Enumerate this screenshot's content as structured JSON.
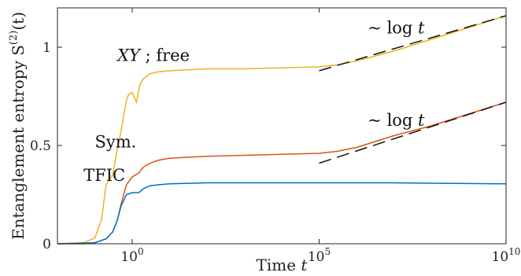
{
  "chart_data": {
    "type": "line",
    "xscale": "log10",
    "xlabel": "Time t",
    "ylabel": "Entanglement entropy S(2)(t)",
    "ylabel_parts": {
      "main": "Entanglement entropy S",
      "sup": "(2)",
      "arg": "(t)"
    },
    "xlim": [
      0.01,
      10000000000
    ],
    "ylim": [
      0,
      1.2
    ],
    "xticks": [
      {
        "value": 1,
        "base": "10",
        "exp": "0"
      },
      {
        "value": 100000,
        "base": "10",
        "exp": "5"
      },
      {
        "value": 10000000000,
        "base": "10",
        "exp": "10"
      }
    ],
    "yticks": [
      {
        "value": 0,
        "label": "0"
      },
      {
        "value": 0.5,
        "label": "0.5"
      },
      {
        "value": 1,
        "label": "1"
      }
    ],
    "grid": false,
    "legend": "none",
    "series": [
      {
        "name": "XY ; free",
        "color": "#edb120",
        "x": [
          0.01,
          0.05,
          0.1,
          0.15,
          0.2,
          0.3,
          0.4,
          0.5,
          0.6,
          0.7,
          0.8,
          1,
          1.3,
          1.6,
          2,
          3,
          5,
          10,
          30,
          100,
          1000,
          10000,
          100000,
          300000,
          1000000,
          10000000,
          100000000,
          1000000000,
          10000000000
        ],
        "y": [
          0.0,
          0.005,
          0.03,
          0.12,
          0.3,
          0.35,
          0.48,
          0.57,
          0.66,
          0.73,
          0.76,
          0.77,
          0.72,
          0.81,
          0.84,
          0.865,
          0.875,
          0.88,
          0.885,
          0.89,
          0.89,
          0.895,
          0.9,
          0.91,
          0.93,
          0.98,
          1.04,
          1.1,
          1.16
        ]
      },
      {
        "name": "Sym.",
        "color": "#d95319",
        "x": [
          0.01,
          0.05,
          0.1,
          0.2,
          0.3,
          0.4,
          0.5,
          0.7,
          1,
          1.5,
          2,
          3,
          5,
          10,
          30,
          100,
          1000,
          10000,
          100000,
          300000,
          1000000,
          10000000,
          100000000,
          1000000000,
          10000000000
        ],
        "y": [
          0.0,
          0.0,
          0.005,
          0.025,
          0.06,
          0.12,
          0.2,
          0.3,
          0.34,
          0.36,
          0.39,
          0.41,
          0.425,
          0.435,
          0.44,
          0.445,
          0.45,
          0.455,
          0.46,
          0.47,
          0.49,
          0.55,
          0.6,
          0.66,
          0.72
        ]
      },
      {
        "name": "TFIC",
        "color": "#0072bd",
        "x": [
          0.01,
          0.1,
          0.2,
          0.3,
          0.4,
          0.5,
          0.7,
          1,
          1.5,
          2,
          3,
          5,
          10,
          100,
          1000,
          100000,
          10000000,
          10000000000
        ],
        "y": [
          0.0,
          0.005,
          0.025,
          0.06,
          0.12,
          0.19,
          0.25,
          0.26,
          0.26,
          0.28,
          0.295,
          0.3,
          0.305,
          0.31,
          0.31,
          0.31,
          0.31,
          0.305
        ]
      }
    ],
    "fits": [
      {
        "label": "~ log t",
        "x": [
          100000,
          10000000000
        ],
        "y": [
          0.88,
          1.16
        ]
      },
      {
        "label": "~ log t",
        "x": [
          100000,
          10000000000
        ],
        "y": [
          0.41,
          0.72
        ]
      }
    ],
    "annotations": [
      {
        "id": "xy",
        "text_italic": "XY",
        "text": "; free",
        "x": 0.4,
        "y": 0.93
      },
      {
        "id": "sym",
        "text": "Sym.",
        "x": 0.1,
        "y": 0.49
      },
      {
        "id": "tfic",
        "text": "TFIC",
        "x": 0.05,
        "y": 0.32
      },
      {
        "id": "log1",
        "tilde": "~",
        "fn": "log",
        "var": "t",
        "x": 2000000,
        "y": 1.07
      },
      {
        "id": "log2",
        "tilde": "~",
        "fn": "log",
        "var": "t",
        "x": 2000000,
        "y": 0.6
      }
    ]
  }
}
